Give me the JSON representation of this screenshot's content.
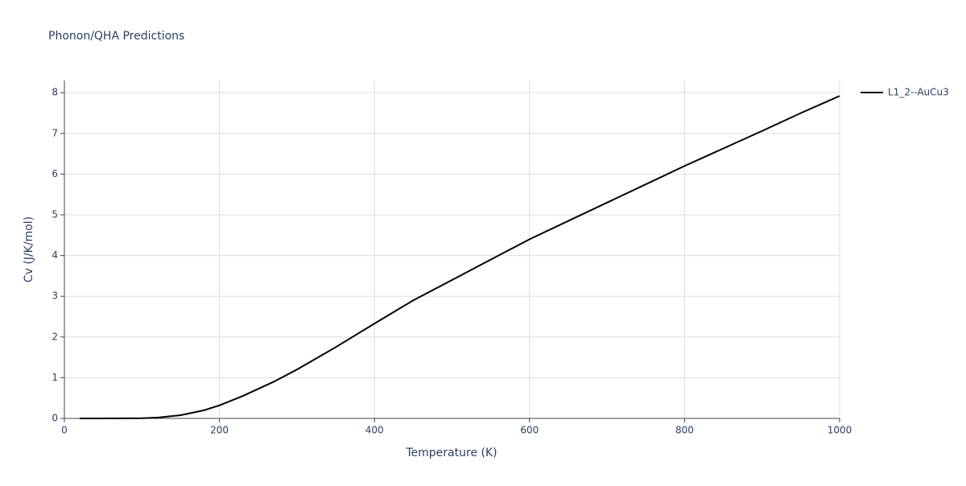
{
  "chart_data": {
    "type": "line",
    "title": "Phonon/QHA Predictions",
    "x_label": "Temperature (K)",
    "y_label": "Cv (J/K/mol)",
    "x": [
      20,
      50,
      100,
      120,
      150,
      180,
      200,
      230,
      270,
      300,
      350,
      400,
      450,
      500,
      550,
      600,
      650,
      700,
      750,
      800,
      850,
      900,
      950,
      1000
    ],
    "series": [
      {
        "name": "L1_2--AuCu3",
        "color": "#000000",
        "values": [
          0,
          0,
          0.005,
          0.02,
          0.08,
          0.2,
          0.32,
          0.55,
          0.9,
          1.2,
          1.75,
          2.33,
          2.9,
          3.4,
          3.9,
          4.4,
          4.85,
          5.3,
          5.75,
          6.2,
          6.63,
          7.06,
          7.5,
          7.92
        ]
      }
    ],
    "xlim": [
      0,
      1000
    ],
    "xticks": [
      0,
      200,
      400,
      600,
      800,
      1000
    ],
    "ylim": [
      0,
      8.3
    ],
    "yticks": [
      0,
      1,
      2,
      3,
      4,
      5,
      6,
      7,
      8
    ],
    "grid": true,
    "legend": "outside-right"
  }
}
